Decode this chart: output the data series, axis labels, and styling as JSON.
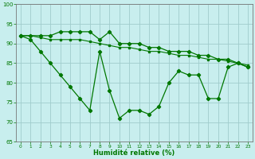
{
  "x": [
    0,
    1,
    2,
    3,
    4,
    5,
    6,
    7,
    8,
    9,
    10,
    11,
    12,
    13,
    14,
    15,
    16,
    17,
    18,
    19,
    20,
    21,
    22,
    23
  ],
  "line_trend": [
    92,
    92,
    91.5,
    91,
    91,
    91,
    91,
    90.5,
    90,
    89.5,
    89,
    89,
    88.5,
    88,
    88,
    87.5,
    87,
    87,
    86.5,
    86,
    86,
    85.5,
    85,
    84.5
  ],
  "line_upper": [
    92,
    92,
    92,
    92,
    93,
    93,
    93,
    93,
    91,
    93,
    90,
    90,
    90,
    89,
    89,
    88,
    88,
    88,
    87,
    87,
    86,
    86,
    85,
    84
  ],
  "line_lower": [
    92,
    91,
    88,
    85,
    82,
    79,
    76,
    73,
    88,
    78,
    71,
    73,
    73,
    72,
    74,
    80,
    83,
    82,
    82,
    76,
    76,
    84,
    85,
    84
  ],
  "bg_color": "#c8eeee",
  "grid_color": "#a0cccc",
  "line_color": "#007700",
  "marker_color": "#007700",
  "xlabel": "Humidité relative (%)",
  "ylim": [
    65,
    100
  ],
  "xlim": [
    -0.5,
    23.5
  ],
  "yticks": [
    65,
    70,
    75,
    80,
    85,
    90,
    95,
    100
  ],
  "xticks": [
    0,
    1,
    2,
    3,
    4,
    5,
    6,
    7,
    8,
    9,
    10,
    11,
    12,
    13,
    14,
    15,
    16,
    17,
    18,
    19,
    20,
    21,
    22,
    23
  ]
}
